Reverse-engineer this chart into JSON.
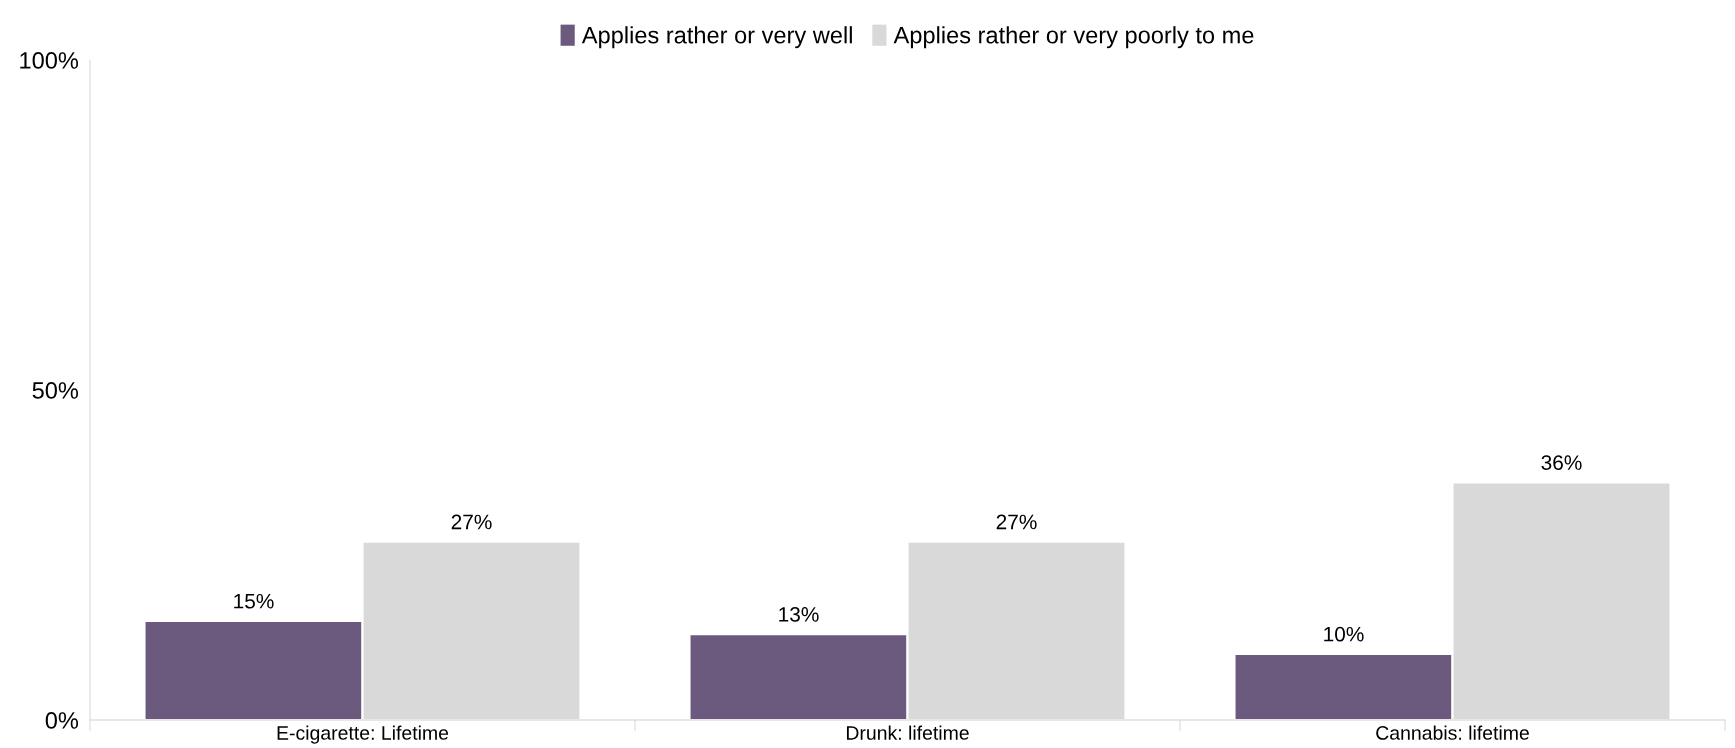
{
  "chart_data": {
    "type": "bar",
    "categories": [
      "E-cigarette: Lifetime",
      "Drunk: lifetime",
      "Cannabis: lifetime"
    ],
    "series": [
      {
        "name": "Applies rather or very well",
        "color": "#6b5a7e",
        "values": [
          15,
          13,
          10
        ],
        "value_labels": [
          "15%",
          "13%",
          "10%"
        ]
      },
      {
        "name": "Applies rather or very poorly to me",
        "color": "#d9d9d9",
        "values": [
          27,
          27,
          36
        ],
        "value_labels": [
          "27%",
          "27%",
          "36%"
        ]
      }
    ],
    "ylim": [
      0,
      100
    ],
    "yticks": [
      {
        "value": 0,
        "label": "0%"
      },
      {
        "value": 50,
        "label": "50%"
      },
      {
        "value": 100,
        "label": "100%"
      }
    ],
    "grid": false,
    "legend": "top"
  }
}
